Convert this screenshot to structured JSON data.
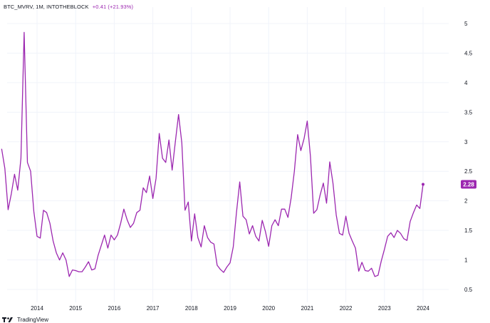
{
  "header": {
    "symbol_line": "BTC_MVRV, 1M, INTOTHEBLOCK",
    "change": "+0.41 (+21.93%)"
  },
  "footer": {
    "brand": "TradingView",
    "logo_icon": "tradingview-logo-icon"
  },
  "colors": {
    "series": "#9c27b0",
    "grid": "#f0f3fa",
    "text": "#131722",
    "badge_text": "#ffffff"
  },
  "last_value_badge": "2.28",
  "chart_data": {
    "type": "line",
    "title": "BTC_MVRV, 1M, INTOTHEBLOCK",
    "xlabel": "",
    "ylabel": "",
    "x_ticks": [
      "2014",
      "2015",
      "2016",
      "2017",
      "2018",
      "2019",
      "2020",
      "2021",
      "2022",
      "2023",
      "2024"
    ],
    "y_ticks": [
      "0.5",
      "1",
      "1.5",
      "2",
      "2.5",
      "3",
      "3.5",
      "4",
      "4.5",
      "5"
    ],
    "ylim": [
      0.4,
      5.1
    ],
    "xlim": [
      "2013-02",
      "2024-12"
    ],
    "grid": true,
    "series": [
      {
        "values": [
          [
            "2013-02",
            2.88
          ],
          [
            "2013-03",
            2.55
          ],
          [
            "2013-04",
            1.85
          ],
          [
            "2013-05",
            2.12
          ],
          [
            "2013-06",
            2.45
          ],
          [
            "2013-07",
            2.18
          ],
          [
            "2013-08",
            2.72
          ],
          [
            "2013-09",
            4.85
          ],
          [
            "2013-10",
            2.65
          ],
          [
            "2013-11",
            2.5
          ],
          [
            "2013-12",
            1.82
          ],
          [
            "2014-01",
            1.4
          ],
          [
            "2014-02",
            1.37
          ],
          [
            "2014-03",
            1.84
          ],
          [
            "2014-04",
            1.8
          ],
          [
            "2014-05",
            1.62
          ],
          [
            "2014-06",
            1.32
          ],
          [
            "2014-07",
            1.12
          ],
          [
            "2014-08",
            1.0
          ],
          [
            "2014-09",
            1.12
          ],
          [
            "2014-10",
            1.0
          ],
          [
            "2014-11",
            0.72
          ],
          [
            "2014-12",
            0.83
          ],
          [
            "2015-01",
            0.82
          ],
          [
            "2015-02",
            0.8
          ],
          [
            "2015-03",
            0.8
          ],
          [
            "2015-04",
            0.88
          ],
          [
            "2015-05",
            0.97
          ],
          [
            "2015-06",
            0.83
          ],
          [
            "2015-07",
            0.85
          ],
          [
            "2015-08",
            1.08
          ],
          [
            "2015-09",
            1.25
          ],
          [
            "2015-10",
            1.42
          ],
          [
            "2015-11",
            1.2
          ],
          [
            "2015-12",
            1.42
          ],
          [
            "2016-01",
            1.34
          ],
          [
            "2016-02",
            1.42
          ],
          [
            "2016-03",
            1.62
          ],
          [
            "2016-04",
            1.86
          ],
          [
            "2016-05",
            1.68
          ],
          [
            "2016-06",
            1.55
          ],
          [
            "2016-07",
            1.62
          ],
          [
            "2016-08",
            1.8
          ],
          [
            "2016-09",
            1.84
          ],
          [
            "2016-10",
            2.22
          ],
          [
            "2016-11",
            2.14
          ],
          [
            "2016-12",
            2.42
          ],
          [
            "2017-01",
            2.04
          ],
          [
            "2017-02",
            2.38
          ],
          [
            "2017-03",
            3.14
          ],
          [
            "2017-04",
            2.72
          ],
          [
            "2017-05",
            2.65
          ],
          [
            "2017-06",
            3.03
          ],
          [
            "2017-07",
            2.52
          ],
          [
            "2017-08",
            3.0
          ],
          [
            "2017-09",
            3.46
          ],
          [
            "2017-10",
            2.98
          ],
          [
            "2017-11",
            1.84
          ],
          [
            "2017-12",
            1.98
          ],
          [
            "2018-01",
            1.32
          ],
          [
            "2018-02",
            1.78
          ],
          [
            "2018-03",
            1.38
          ],
          [
            "2018-04",
            1.22
          ],
          [
            "2018-05",
            1.58
          ],
          [
            "2018-06",
            1.38
          ],
          [
            "2018-07",
            1.3
          ],
          [
            "2018-08",
            1.27
          ],
          [
            "2018-09",
            0.91
          ],
          [
            "2018-10",
            0.84
          ],
          [
            "2018-11",
            0.79
          ],
          [
            "2018-12",
            0.88
          ],
          [
            "2019-01",
            0.95
          ],
          [
            "2019-02",
            1.22
          ],
          [
            "2019-03",
            1.8
          ],
          [
            "2019-04",
            2.32
          ],
          [
            "2019-05",
            1.74
          ],
          [
            "2019-06",
            1.68
          ],
          [
            "2019-07",
            1.44
          ],
          [
            "2019-08",
            1.58
          ],
          [
            "2019-09",
            1.4
          ],
          [
            "2019-10",
            1.32
          ],
          [
            "2019-11",
            1.67
          ],
          [
            "2019-12",
            1.48
          ],
          [
            "2020-01",
            1.23
          ],
          [
            "2020-02",
            1.58
          ],
          [
            "2020-03",
            1.68
          ],
          [
            "2020-04",
            1.58
          ],
          [
            "2020-05",
            1.86
          ],
          [
            "2020-06",
            1.86
          ],
          [
            "2020-07",
            1.72
          ],
          [
            "2020-08",
            2.05
          ],
          [
            "2020-09",
            2.5
          ],
          [
            "2020-10",
            3.12
          ],
          [
            "2020-11",
            2.85
          ],
          [
            "2020-12",
            3.05
          ],
          [
            "2021-01",
            3.35
          ],
          [
            "2021-02",
            2.75
          ],
          [
            "2021-03",
            1.79
          ],
          [
            "2021-04",
            1.85
          ],
          [
            "2021-05",
            2.1
          ],
          [
            "2021-06",
            2.3
          ],
          [
            "2021-07",
            1.96
          ],
          [
            "2021-08",
            2.66
          ],
          [
            "2021-09",
            2.3
          ],
          [
            "2021-10",
            1.76
          ],
          [
            "2021-11",
            1.45
          ],
          [
            "2021-12",
            1.42
          ],
          [
            "2022-01",
            1.74
          ],
          [
            "2022-02",
            1.45
          ],
          [
            "2022-03",
            1.32
          ],
          [
            "2022-04",
            1.2
          ],
          [
            "2022-05",
            0.81
          ],
          [
            "2022-06",
            0.96
          ],
          [
            "2022-07",
            0.82
          ],
          [
            "2022-08",
            0.81
          ],
          [
            "2022-09",
            0.86
          ],
          [
            "2022-10",
            0.72
          ],
          [
            "2022-11",
            0.74
          ],
          [
            "2022-12",
            0.98
          ],
          [
            "2023-01",
            1.18
          ],
          [
            "2023-02",
            1.4
          ],
          [
            "2023-03",
            1.46
          ],
          [
            "2023-04",
            1.38
          ],
          [
            "2023-05",
            1.5
          ],
          [
            "2023-06",
            1.45
          ],
          [
            "2023-07",
            1.36
          ],
          [
            "2023-08",
            1.33
          ],
          [
            "2023-09",
            1.65
          ],
          [
            "2023-10",
            1.8
          ],
          [
            "2023-11",
            1.93
          ],
          [
            "2023-12",
            1.87
          ],
          [
            "2024-01",
            2.28
          ]
        ]
      }
    ]
  }
}
